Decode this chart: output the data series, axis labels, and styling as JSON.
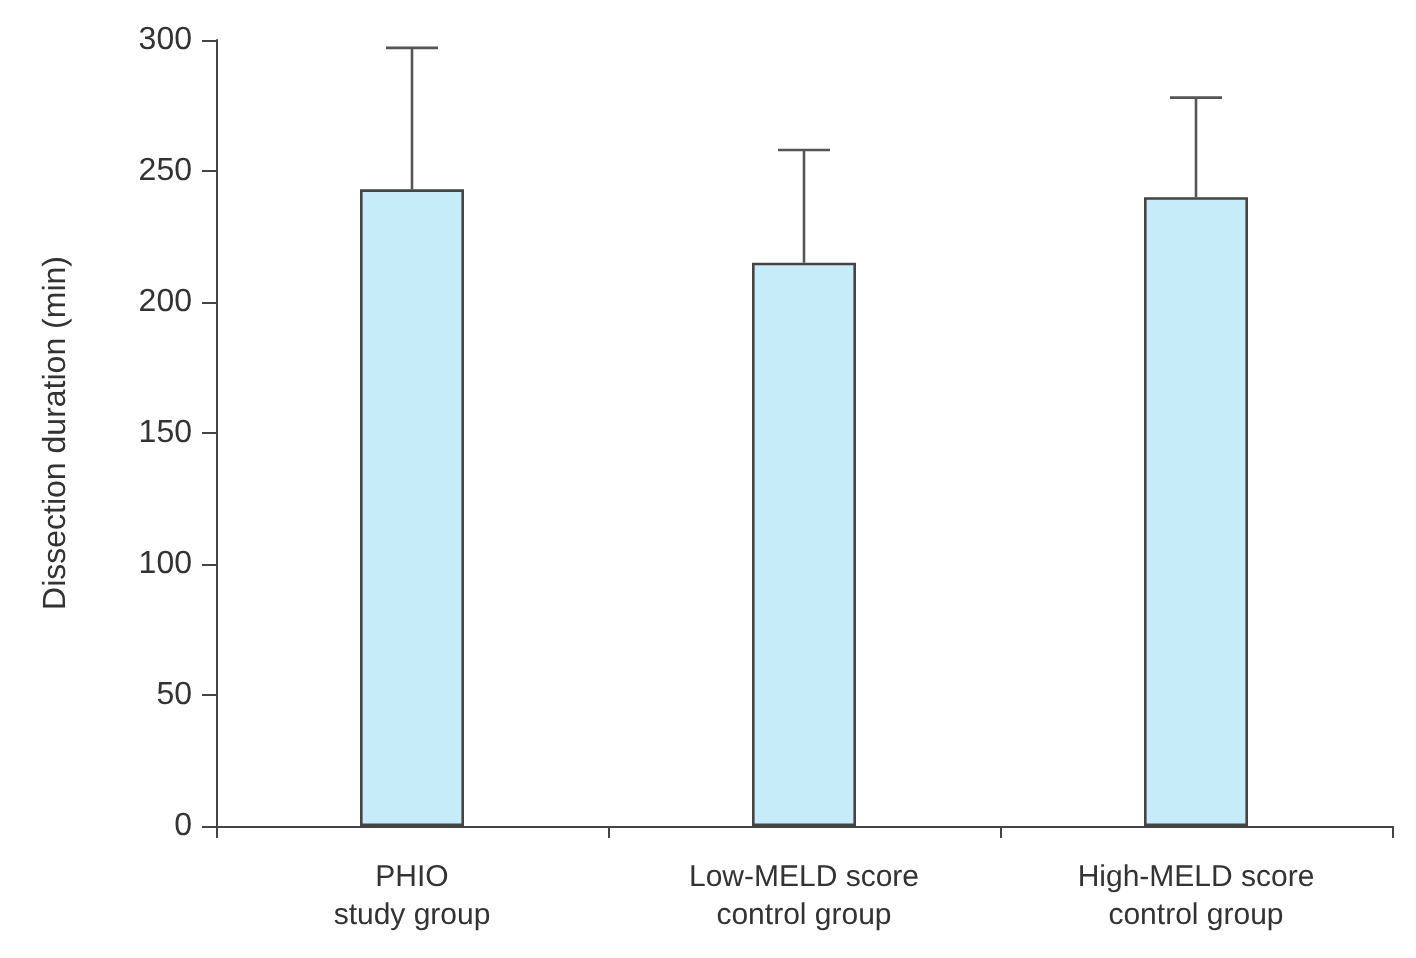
{
  "chart_data": {
    "type": "bar",
    "ylabel": "Dissection duration (min)",
    "categories": [
      "PHIO\nstudy group",
      "Low-MELD score\ncontrol group",
      "High-MELD score\ncontrol group"
    ],
    "values": [
      243,
      215,
      240
    ],
    "errors": [
      [
        243,
        297
      ],
      [
        215,
        258
      ],
      [
        240,
        278
      ]
    ],
    "color": "#c6ecf8",
    "ylim": [
      0,
      300
    ],
    "yticks": [
      0,
      50,
      100,
      150,
      200,
      250,
      300
    ],
    "grid": false
  }
}
